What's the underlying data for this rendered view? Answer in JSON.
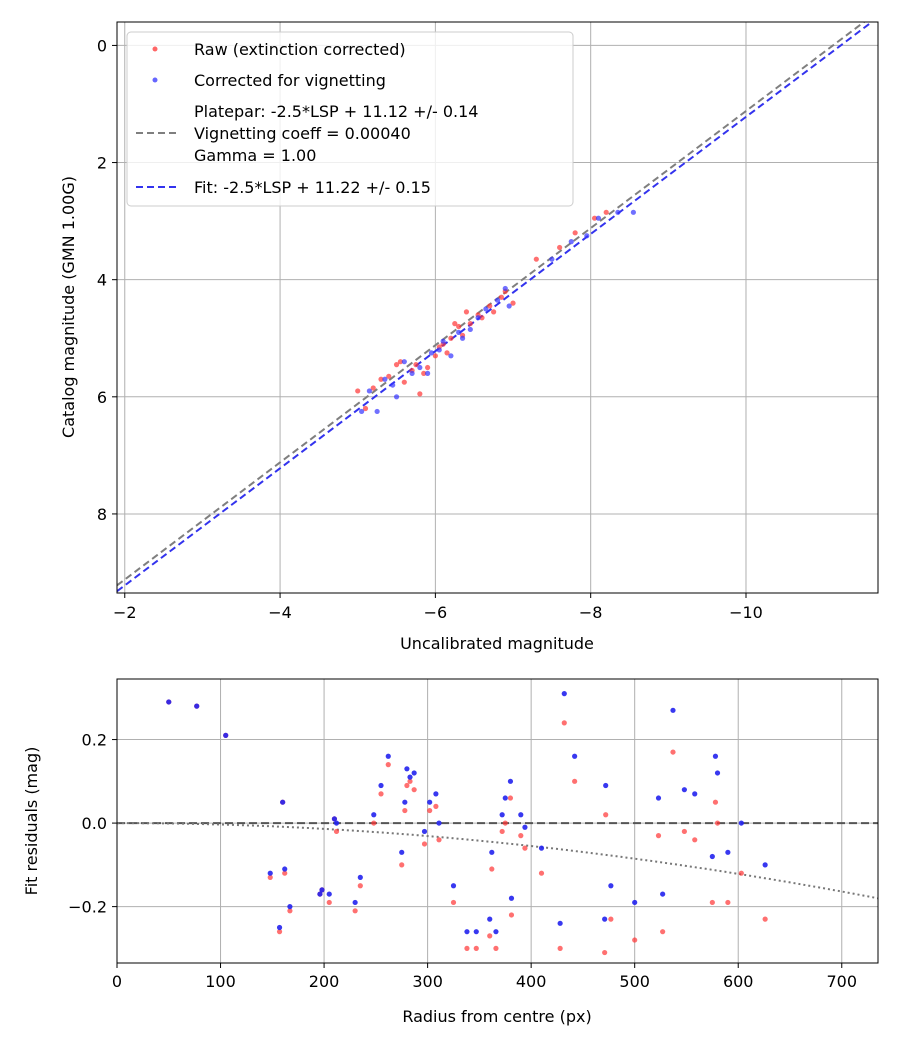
{
  "chart_data": [
    {
      "type": "scatter",
      "xlabel": "Uncalibrated magnitude",
      "ylabel": "Catalog magnitude (GMN 1.00G)",
      "xlim": [
        -1.9,
        -11.7
      ],
      "ylim": [
        9.35,
        -0.4
      ],
      "grid": true,
      "x_ticks": [
        -2,
        -4,
        -6,
        -8,
        -10
      ],
      "x_tick_labels": [
        "−2",
        "−4",
        "−6",
        "−8",
        "−10"
      ],
      "y_ticks": [
        0,
        2,
        4,
        6,
        8
      ],
      "y_tick_labels": [
        "0",
        "2",
        "4",
        "6",
        "8"
      ],
      "legend_position": "top-left",
      "legend": {
        "raw": "Raw (extinction corrected)",
        "corrected": "Corrected for vignetting",
        "platepar_line1": "Platepar: -2.5*LSP + 11.12 +/- 0.14",
        "platepar_line2": "Vignetting coeff = 0.00040",
        "platepar_line3": "Gamma = 1.00",
        "fit": "Fit: -2.5*LSP + 11.22 +/- 0.15"
      },
      "lines": [
        {
          "name": "Platepar",
          "zero_point": 11.12,
          "color": "#7f7f7f",
          "style": "dashed"
        },
        {
          "name": "Fit",
          "zero_point": 11.22,
          "color": "#3333ee",
          "style": "dashed"
        }
      ],
      "series": [
        {
          "name": "Raw (extinction corrected)",
          "color": "#ff3333",
          "points": [
            [
              -5.0,
              5.9
            ],
            [
              -5.1,
              6.2
            ],
            [
              -5.2,
              5.85
            ],
            [
              -5.3,
              5.7
            ],
            [
              -5.4,
              5.65
            ],
            [
              -5.5,
              5.45
            ],
            [
              -5.55,
              5.4
            ],
            [
              -5.6,
              5.75
            ],
            [
              -5.7,
              5.55
            ],
            [
              -5.75,
              5.45
            ],
            [
              -5.8,
              5.95
            ],
            [
              -5.85,
              5.6
            ],
            [
              -5.9,
              5.5
            ],
            [
              -6.0,
              5.3
            ],
            [
              -6.05,
              5.15
            ],
            [
              -6.1,
              5.1
            ],
            [
              -6.15,
              5.25
            ],
            [
              -6.2,
              5.0
            ],
            [
              -6.25,
              4.75
            ],
            [
              -6.3,
              4.8
            ],
            [
              -6.35,
              4.95
            ],
            [
              -6.4,
              4.55
            ],
            [
              -6.45,
              4.75
            ],
            [
              -6.55,
              4.6
            ],
            [
              -6.6,
              4.65
            ],
            [
              -6.7,
              4.45
            ],
            [
              -6.75,
              4.55
            ],
            [
              -6.85,
              4.3
            ],
            [
              -6.9,
              4.2
            ],
            [
              -7.0,
              4.4
            ],
            [
              -7.3,
              3.65
            ],
            [
              -7.6,
              3.45
            ],
            [
              -7.8,
              3.2
            ],
            [
              -8.05,
              2.95
            ],
            [
              -8.2,
              2.85
            ]
          ]
        },
        {
          "name": "Corrected for vignetting",
          "color": "#3333ff",
          "points": [
            [
              -5.05,
              6.25
            ],
            [
              -5.15,
              5.9
            ],
            [
              -5.25,
              6.25
            ],
            [
              -5.35,
              5.7
            ],
            [
              -5.45,
              5.8
            ],
            [
              -5.5,
              6.0
            ],
            [
              -5.6,
              5.4
            ],
            [
              -5.7,
              5.6
            ],
            [
              -5.8,
              5.5
            ],
            [
              -5.9,
              5.6
            ],
            [
              -5.95,
              5.25
            ],
            [
              -6.05,
              5.2
            ],
            [
              -6.1,
              5.05
            ],
            [
              -6.2,
              5.3
            ],
            [
              -6.3,
              4.9
            ],
            [
              -6.35,
              5.0
            ],
            [
              -6.45,
              4.85
            ],
            [
              -6.55,
              4.65
            ],
            [
              -6.65,
              4.5
            ],
            [
              -6.8,
              4.35
            ],
            [
              -6.9,
              4.15
            ],
            [
              -6.95,
              4.45
            ],
            [
              -7.5,
              3.65
            ],
            [
              -7.75,
              3.35
            ],
            [
              -7.95,
              3.25
            ],
            [
              -8.1,
              2.95
            ],
            [
              -8.35,
              2.85
            ],
            [
              -8.55,
              2.85
            ]
          ]
        }
      ]
    },
    {
      "type": "scatter",
      "xlabel": "Radius from centre (px)",
      "ylabel": "Fit residuals (mag)",
      "xlim": [
        0,
        735
      ],
      "ylim": [
        -0.335,
        0.345
      ],
      "grid": true,
      "x_ticks": [
        0,
        100,
        200,
        300,
        400,
        500,
        600,
        700
      ],
      "x_tick_labels": [
        "0",
        "100",
        "200",
        "300",
        "400",
        "500",
        "600",
        "700"
      ],
      "y_ticks": [
        -0.2,
        0.0,
        0.2
      ],
      "y_tick_labels": [
        "−0.2",
        "0.0",
        "0.2"
      ],
      "reference_lines": [
        {
          "name": "zero",
          "y": 0,
          "color": "#555555",
          "style": "dashed"
        },
        {
          "name": "vignetting curve",
          "coeff": 0.0004,
          "color": "#777777",
          "style": "dotted"
        }
      ],
      "series": [
        {
          "name": "Raw (extinction corrected)",
          "color": "#ff3333",
          "points": [
            [
              50,
              0.29
            ],
            [
              77,
              0.28
            ],
            [
              105,
              0.21
            ],
            [
              148,
              -0.13
            ],
            [
              157,
              -0.26
            ],
            [
              160,
              0.05
            ],
            [
              162,
              -0.12
            ],
            [
              167,
              -0.21
            ],
            [
              196,
              -0.17
            ],
            [
              198,
              -0.16
            ],
            [
              205,
              -0.19
            ],
            [
              210,
              0.01
            ],
            [
              212,
              -0.02
            ],
            [
              230,
              -0.21
            ],
            [
              235,
              -0.15
            ],
            [
              248,
              0.0
            ],
            [
              255,
              0.07
            ],
            [
              262,
              0.14
            ],
            [
              275,
              -0.1
            ],
            [
              278,
              0.03
            ],
            [
              280,
              0.09
            ],
            [
              283,
              0.1
            ],
            [
              287,
              0.08
            ],
            [
              297,
              -0.05
            ],
            [
              302,
              0.03
            ],
            [
              308,
              0.04
            ],
            [
              311,
              -0.04
            ],
            [
              325,
              -0.19
            ],
            [
              338,
              -0.3
            ],
            [
              347,
              -0.3
            ],
            [
              360,
              -0.27
            ],
            [
              362,
              -0.11
            ],
            [
              366,
              -0.3
            ],
            [
              372,
              -0.02
            ],
            [
              375,
              0.0
            ],
            [
              380,
              0.06
            ],
            [
              381,
              -0.22
            ],
            [
              390,
              -0.03
            ],
            [
              394,
              -0.06
            ],
            [
              410,
              -0.12
            ],
            [
              428,
              -0.3
            ],
            [
              432,
              0.24
            ],
            [
              442,
              0.1
            ],
            [
              471,
              -0.31
            ],
            [
              472,
              0.02
            ],
            [
              477,
              -0.23
            ],
            [
              500,
              -0.28
            ],
            [
              523,
              -0.03
            ],
            [
              527,
              -0.26
            ],
            [
              537,
              0.17
            ],
            [
              548,
              -0.02
            ],
            [
              558,
              -0.04
            ],
            [
              575,
              -0.19
            ],
            [
              578,
              0.05
            ],
            [
              580,
              0.0
            ],
            [
              590,
              -0.19
            ],
            [
              603,
              -0.12
            ],
            [
              626,
              -0.23
            ]
          ]
        },
        {
          "name": "Corrected for vignetting",
          "color": "#2222ee",
          "points": [
            [
              50,
              0.29
            ],
            [
              77,
              0.28
            ],
            [
              105,
              0.21
            ],
            [
              148,
              -0.12
            ],
            [
              157,
              -0.25
            ],
            [
              160,
              0.05
            ],
            [
              162,
              -0.11
            ],
            [
              167,
              -0.2
            ],
            [
              196,
              -0.17
            ],
            [
              198,
              -0.16
            ],
            [
              205,
              -0.17
            ],
            [
              210,
              0.01
            ],
            [
              212,
              0.0
            ],
            [
              230,
              -0.19
            ],
            [
              235,
              -0.13
            ],
            [
              248,
              0.02
            ],
            [
              255,
              0.09
            ],
            [
              262,
              0.16
            ],
            [
              275,
              -0.07
            ],
            [
              278,
              0.05
            ],
            [
              280,
              0.13
            ],
            [
              283,
              0.11
            ],
            [
              287,
              0.12
            ],
            [
              297,
              -0.02
            ],
            [
              302,
              0.05
            ],
            [
              308,
              0.07
            ],
            [
              311,
              0.0
            ],
            [
              325,
              -0.15
            ],
            [
              338,
              -0.26
            ],
            [
              347,
              -0.26
            ],
            [
              360,
              -0.23
            ],
            [
              362,
              -0.07
            ],
            [
              366,
              -0.26
            ],
            [
              372,
              0.02
            ],
            [
              375,
              0.06
            ],
            [
              380,
              0.1
            ],
            [
              381,
              -0.18
            ],
            [
              390,
              0.02
            ],
            [
              394,
              -0.01
            ],
            [
              410,
              -0.06
            ],
            [
              428,
              -0.24
            ],
            [
              432,
              0.31
            ],
            [
              442,
              0.16
            ],
            [
              471,
              -0.23
            ],
            [
              472,
              0.09
            ],
            [
              477,
              -0.15
            ],
            [
              500,
              -0.19
            ],
            [
              523,
              0.06
            ],
            [
              527,
              -0.17
            ],
            [
              537,
              0.27
            ],
            [
              548,
              0.08
            ],
            [
              558,
              0.07
            ],
            [
              575,
              -0.08
            ],
            [
              578,
              0.16
            ],
            [
              580,
              0.12
            ],
            [
              590,
              -0.07
            ],
            [
              603,
              0.0
            ],
            [
              626,
              -0.1
            ]
          ]
        }
      ]
    }
  ]
}
